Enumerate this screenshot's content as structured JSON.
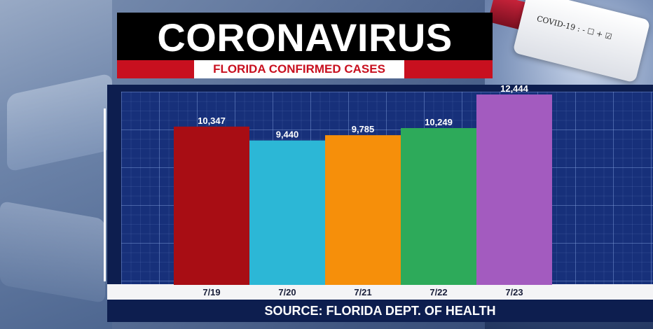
{
  "header": {
    "title": "CORONAVIRUS",
    "subtitle": "FLORIDA CONFIRMED CASES"
  },
  "background": {
    "tube_label": "COVID-19 : - ☐ + ☑"
  },
  "footer": {
    "source": "SOURCE: FLORIDA DEPT. OF HEALTH"
  },
  "chart_data": {
    "type": "bar",
    "categories": [
      "7/19",
      "7/20",
      "7/21",
      "7/22",
      "7/23"
    ],
    "values": [
      10347,
      9440,
      9785,
      10249,
      12444
    ],
    "value_labels": [
      "10,347",
      "9,440",
      "9,785",
      "10,249",
      "12,444"
    ],
    "colors": [
      "#a80d14",
      "#2cb7d6",
      "#f68f0a",
      "#2daa5a",
      "#a35bbf"
    ],
    "title": "",
    "xlabel": "",
    "ylabel": "",
    "ylim": [
      0,
      12444
    ],
    "grid": true
  }
}
